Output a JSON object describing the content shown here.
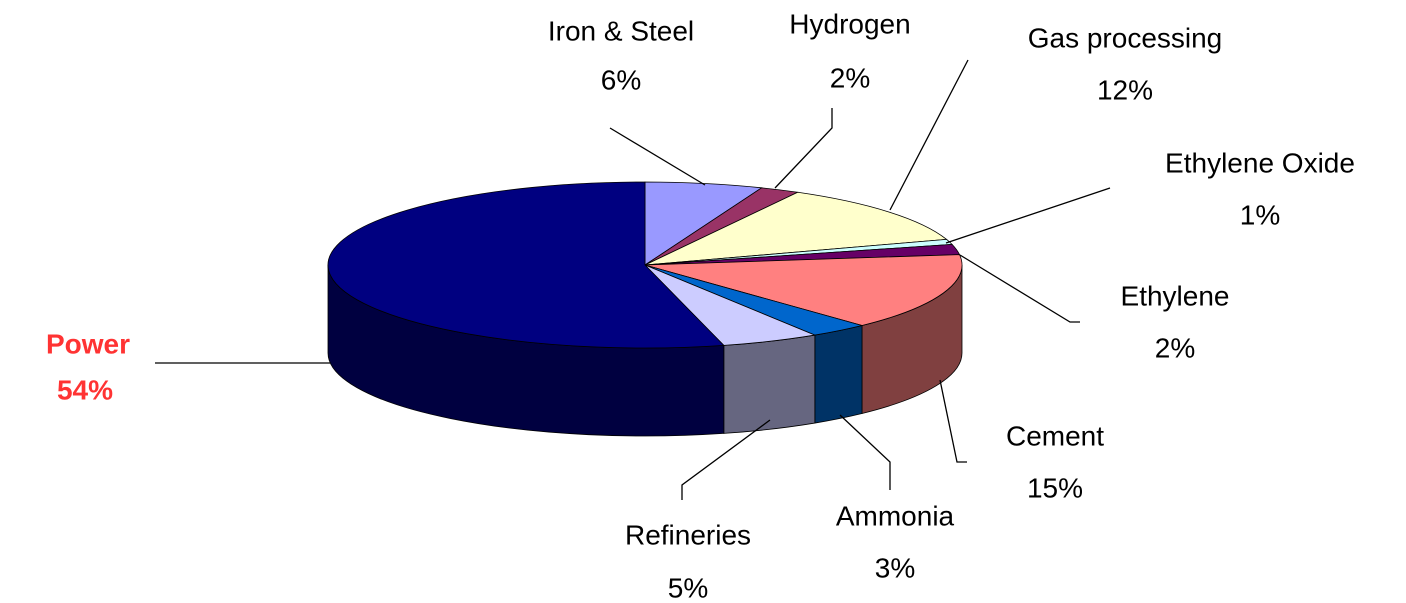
{
  "chart_data": {
    "type": "pie",
    "categories": [
      "Iron & Steel",
      "Hydrogen",
      "Gas processing",
      "Ethylene Oxide",
      "Ethylene",
      "Cement",
      "Ammonia",
      "Refineries",
      "Power"
    ],
    "values": [
      6,
      2,
      12,
      1,
      2,
      15,
      3,
      5,
      54
    ],
    "value_labels": [
      "6%",
      "2%",
      "12%",
      "1%",
      "2%",
      "15%",
      "3%",
      "5%",
      "54%"
    ],
    "colors": [
      "#9999ff",
      "#993366",
      "#ffffcc",
      "#ccffff",
      "#660066",
      "#ff8080",
      "#0066cc",
      "#ccccff",
      "#000080"
    ]
  }
}
